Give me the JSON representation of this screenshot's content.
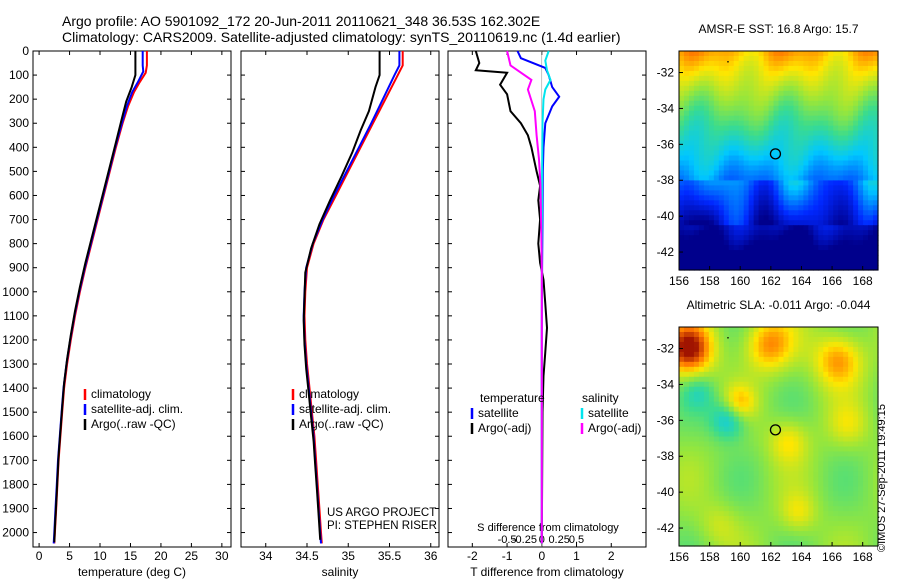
{
  "title": {
    "line1": "Argo profile: AO 5901092_172 20-Jun-2011 20110621_348 36.53S 162.302E",
    "line2": "Climatology: CARS2009. Satellite-adjusted climatology: synTS_20110619.nc (1.4d earlier)"
  },
  "stamp": "©IMOS 27-Sep-2011 19:49:15",
  "colors": {
    "climatology": "#ff0000",
    "satellite": "#0000ff",
    "argo": "#000000",
    "salt_satellite": "#00e5ee",
    "salt_argo": "#ff00ff"
  },
  "depth_axis": {
    "ticks": [
      0,
      100,
      200,
      300,
      400,
      500,
      600,
      700,
      800,
      900,
      1000,
      1100,
      1200,
      1300,
      1400,
      1500,
      1600,
      1700,
      1800,
      1900,
      2000
    ],
    "range": [
      0,
      2060
    ]
  },
  "chart_data": [
    {
      "id": "temperature",
      "type": "line",
      "xlabel": "temperature (deg C)",
      "xlim": [
        -1,
        31.5
      ],
      "xticks": [
        0,
        5,
        10,
        15,
        20,
        25,
        30
      ],
      "legend": [
        "climatology",
        "satellite-adj. clim.",
        "Argo(..raw -QC)"
      ],
      "series": [
        {
          "name": "climatology",
          "color": "#ff0000",
          "points": [
            [
              17.7,
              0
            ],
            [
              17.7,
              60
            ],
            [
              17.5,
              90
            ],
            [
              16.5,
              130
            ],
            [
              15.6,
              170
            ],
            [
              14.6,
              230
            ],
            [
              13.7,
              300
            ],
            [
              12.6,
              400
            ],
            [
              11.6,
              500
            ],
            [
              10.6,
              600
            ],
            [
              9.6,
              700
            ],
            [
              8.6,
              800
            ],
            [
              7.6,
              900
            ],
            [
              6.7,
              1000
            ],
            [
              5.9,
              1100
            ],
            [
              5.2,
              1200
            ],
            [
              4.6,
              1300
            ],
            [
              4.1,
              1400
            ],
            [
              3.8,
              1500
            ],
            [
              3.5,
              1600
            ],
            [
              3.2,
              1700
            ],
            [
              3.0,
              1800
            ],
            [
              2.8,
              1900
            ],
            [
              2.6,
              2000
            ],
            [
              2.5,
              2045
            ]
          ]
        },
        {
          "name": "satellite-adj. clim.",
          "color": "#0000ff",
          "points": [
            [
              17.0,
              0
            ],
            [
              17.0,
              60
            ],
            [
              17.1,
              85
            ],
            [
              16.2,
              130
            ],
            [
              15.3,
              170
            ],
            [
              14.4,
              230
            ],
            [
              13.6,
              300
            ],
            [
              12.5,
              400
            ],
            [
              11.5,
              500
            ],
            [
              10.5,
              600
            ],
            [
              9.5,
              700
            ],
            [
              8.5,
              800
            ],
            [
              7.5,
              900
            ],
            [
              6.6,
              1000
            ],
            [
              5.8,
              1100
            ],
            [
              5.1,
              1200
            ],
            [
              4.5,
              1300
            ],
            [
              4.0,
              1400
            ],
            [
              3.7,
              1500
            ],
            [
              3.4,
              1600
            ],
            [
              3.1,
              1700
            ],
            [
              2.9,
              1800
            ],
            [
              2.7,
              1900
            ],
            [
              2.5,
              2000
            ],
            [
              2.4,
              2045
            ]
          ]
        },
        {
          "name": "Argo(..raw -QC)",
          "color": "#000000",
          "points": [
            [
              15.8,
              0
            ],
            [
              15.8,
              100
            ],
            [
              15.2,
              150
            ],
            [
              14.3,
              210
            ],
            [
              13.6,
              280
            ],
            [
              12.6,
              380
            ],
            [
              11.6,
              480
            ],
            [
              10.6,
              580
            ],
            [
              9.6,
              680
            ],
            [
              8.6,
              780
            ],
            [
              7.6,
              880
            ],
            [
              6.7,
              980
            ],
            [
              5.9,
              1080
            ],
            [
              5.2,
              1180
            ],
            [
              4.6,
              1280
            ],
            [
              4.1,
              1380
            ],
            [
              3.8,
              1480
            ],
            [
              3.5,
              1580
            ],
            [
              3.2,
              1680
            ],
            [
              3.0,
              1780
            ],
            [
              2.8,
              1880
            ],
            [
              2.6,
              1980
            ],
            [
              2.5,
              2040
            ]
          ]
        }
      ]
    },
    {
      "id": "salinity",
      "type": "line",
      "xlabel": "salinity",
      "xlim": [
        33.7,
        36.1
      ],
      "xticks": [
        34,
        34.5,
        35,
        35.5,
        36
      ],
      "legend": [
        "climatology",
        "satellite-adj. clim.",
        "Argo(..raw -QC)"
      ],
      "annotation": [
        "US ARGO PROJECT",
        "PI: STEPHEN RISER"
      ],
      "series": [
        {
          "name": "climatology",
          "color": "#ff0000",
          "points": [
            [
              35.66,
              0
            ],
            [
              35.66,
              60
            ],
            [
              35.6,
              100
            ],
            [
              35.45,
              200
            ],
            [
              35.3,
              300
            ],
            [
              35.15,
              400
            ],
            [
              35.0,
              500
            ],
            [
              34.85,
              600
            ],
            [
              34.7,
              700
            ],
            [
              34.58,
              800
            ],
            [
              34.5,
              900
            ],
            [
              34.48,
              1000
            ],
            [
              34.47,
              1100
            ],
            [
              34.48,
              1200
            ],
            [
              34.5,
              1300
            ],
            [
              34.53,
              1400
            ],
            [
              34.56,
              1500
            ],
            [
              34.59,
              1600
            ],
            [
              34.61,
              1700
            ],
            [
              34.63,
              1800
            ],
            [
              34.65,
              1900
            ],
            [
              34.67,
              2000
            ],
            [
              34.68,
              2045
            ]
          ]
        },
        {
          "name": "satellite-adj. clim.",
          "color": "#0000ff",
          "points": [
            [
              35.62,
              0
            ],
            [
              35.62,
              60
            ],
            [
              35.56,
              100
            ],
            [
              35.42,
              200
            ],
            [
              35.28,
              300
            ],
            [
              35.13,
              400
            ],
            [
              34.98,
              500
            ],
            [
              34.83,
              600
            ],
            [
              34.69,
              700
            ],
            [
              34.57,
              800
            ],
            [
              34.49,
              900
            ],
            [
              34.47,
              1000
            ],
            [
              34.46,
              1100
            ],
            [
              34.47,
              1200
            ],
            [
              34.49,
              1300
            ],
            [
              34.52,
              1400
            ],
            [
              34.55,
              1500
            ],
            [
              34.58,
              1600
            ],
            [
              34.6,
              1700
            ],
            [
              34.62,
              1800
            ],
            [
              34.64,
              1900
            ],
            [
              34.66,
              2000
            ],
            [
              34.67,
              2045
            ]
          ]
        },
        {
          "name": "Argo(..raw -QC)",
          "color": "#000000",
          "points": [
            [
              35.38,
              0
            ],
            [
              35.38,
              100
            ],
            [
              35.33,
              150
            ],
            [
              35.25,
              250
            ],
            [
              35.15,
              330
            ],
            [
              35.05,
              420
            ],
            [
              34.92,
              520
            ],
            [
              34.78,
              620
            ],
            [
              34.65,
              720
            ],
            [
              34.55,
              820
            ],
            [
              34.48,
              920
            ],
            [
              34.47,
              1020
            ],
            [
              34.46,
              1120
            ],
            [
              34.47,
              1220
            ],
            [
              34.49,
              1320
            ],
            [
              34.52,
              1420
            ],
            [
              34.55,
              1520
            ],
            [
              34.58,
              1620
            ],
            [
              34.6,
              1720
            ],
            [
              34.62,
              1820
            ],
            [
              34.64,
              1920
            ],
            [
              34.66,
              2030
            ]
          ]
        }
      ]
    },
    {
      "id": "difference",
      "type": "line",
      "xlabel": "T difference from climatology",
      "xlabel_top": "S difference from climatology",
      "xlim": [
        -2.7,
        3.0
      ],
      "xticks": [
        -2,
        -1,
        0,
        1,
        2
      ],
      "xticks_top_values": [
        -0.5,
        -0.25,
        0,
        0.25,
        0.5
      ],
      "xticks_top_labels": [
        "-0.5",
        "-0.25",
        "0",
        "0.25",
        "0.5"
      ],
      "legend_headers": [
        "temperature",
        "salinity"
      ],
      "legend": [
        "satellite",
        "Argo(-adj)",
        "satellite",
        "Argo(-adj)"
      ],
      "series": [
        {
          "name": "T satellite",
          "color": "#0000ff",
          "points": [
            [
              -0.7,
              0
            ],
            [
              -0.6,
              30
            ],
            [
              0.1,
              70
            ],
            [
              0.2,
              100
            ],
            [
              0.3,
              150
            ],
            [
              0.5,
              190
            ],
            [
              0.3,
              230
            ],
            [
              0.1,
              300
            ],
            [
              0.05,
              400
            ],
            [
              0.03,
              500
            ],
            [
              0.02,
              700
            ],
            [
              0.01,
              900
            ],
            [
              0.0,
              1200
            ],
            [
              0.0,
              1600
            ],
            [
              0.0,
              2045
            ]
          ]
        },
        {
          "name": "T Argo(-adj)",
          "color": "#000000",
          "points": [
            [
              -1.9,
              0
            ],
            [
              -1.8,
              50
            ],
            [
              -1.9,
              80
            ],
            [
              -1.0,
              90
            ],
            [
              -1.2,
              140
            ],
            [
              -1.0,
              180
            ],
            [
              -0.9,
              250
            ],
            [
              -0.6,
              300
            ],
            [
              -0.4,
              350
            ],
            [
              -0.3,
              400
            ],
            [
              -0.15,
              500
            ],
            [
              -0.05,
              560
            ],
            [
              -0.1,
              620
            ],
            [
              -0.05,
              700
            ],
            [
              -0.1,
              800
            ],
            [
              -0.05,
              880
            ],
            [
              0.05,
              950
            ],
            [
              0.1,
              1050
            ],
            [
              0.15,
              1150
            ],
            [
              0.1,
              1250
            ],
            [
              0.05,
              1350
            ],
            [
              0.02,
              1500
            ],
            [
              0.0,
              2040
            ]
          ]
        },
        {
          "name": "S satellite",
          "color": "#00e5ee",
          "points": [
            [
              0.2,
              0
            ],
            [
              0.1,
              40
            ],
            [
              0.15,
              80
            ],
            [
              0.25,
              120
            ],
            [
              0.1,
              160
            ],
            [
              0.05,
              200
            ],
            [
              0.02,
              300
            ],
            [
              0.01,
              500
            ],
            [
              0.0,
              800
            ],
            [
              0.0,
              1200
            ],
            [
              0.0,
              2045
            ]
          ]
        },
        {
          "name": "S Argo(-adj)",
          "color": "#ff00ff",
          "points": [
            [
              -1.0,
              0
            ],
            [
              -0.9,
              60
            ],
            [
              -0.3,
              120
            ],
            [
              -0.4,
              160
            ],
            [
              -0.2,
              250
            ],
            [
              -0.15,
              350
            ],
            [
              -0.08,
              450
            ],
            [
              -0.04,
              550
            ],
            [
              -0.02,
              700
            ],
            [
              0.0,
              900
            ],
            [
              0.0,
              1300
            ],
            [
              0.0,
              2045
            ]
          ]
        }
      ]
    }
  ],
  "maps": [
    {
      "id": "sst-map",
      "title": "AMSR-E SST: 16.8 Argo: 15.7",
      "xticks": [
        156,
        158,
        160,
        162,
        164,
        166,
        168
      ],
      "yticks": [
        -32,
        -34,
        -36,
        -38,
        -40,
        -42
      ],
      "lon_range": [
        156,
        169
      ],
      "lat_range": [
        -43,
        -30.8
      ],
      "marker": {
        "lon": 162.3,
        "lat": -36.53
      }
    },
    {
      "id": "sla-map",
      "title": "Altimetric SLA: -0.011 Argo: -0.044",
      "xticks": [
        156,
        158,
        160,
        162,
        164,
        166,
        168
      ],
      "yticks": [
        -32,
        -34,
        -36,
        -38,
        -40,
        -42
      ],
      "lon_range": [
        156,
        169
      ],
      "lat_range": [
        -43,
        -30.8
      ],
      "marker": {
        "lon": 162.3,
        "lat": -36.53
      }
    }
  ]
}
